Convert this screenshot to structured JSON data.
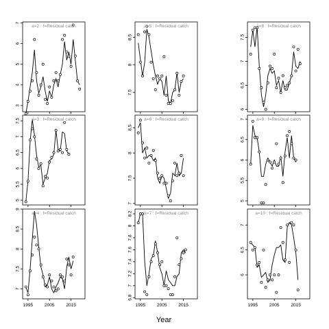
{
  "chart_data": {
    "type": "line",
    "xlabel": "Year",
    "x_ticks": [
      1995,
      2005,
      2015
    ],
    "x": [
      1994,
      1995,
      1996,
      1997,
      1998,
      1999,
      2000,
      2001,
      2002,
      2003,
      2004,
      2005,
      2006,
      2007,
      2008,
      2009,
      2010,
      2011,
      2012,
      2013,
      2014,
      2015,
      2016,
      2017,
      2018,
      2019,
      2020
    ],
    "panels": [
      {
        "label": "a=2  :  f=Residual catch",
        "xlim": [
          1992.5,
          2021.5
        ],
        "ylim": [
          2.7,
          7.05
        ],
        "yticks": [
          3,
          4,
          5,
          6,
          7
        ],
        "fitted": [
          2.6,
          3.2,
          3.9,
          4.6,
          5.7,
          4.2,
          3.6,
          3.9,
          4.4,
          3.7,
          3.2,
          3.7,
          3.4,
          4.0,
          4.3,
          3.9,
          4.5,
          5.0,
          6.1,
          5.2,
          5.6,
          5.0,
          6.2,
          5.2,
          4.2,
          4.0
        ],
        "observed": [
          2.6,
          3.2,
          3.7,
          4.2,
          6.2,
          4.6,
          3.5,
          4.0,
          5.0,
          3.3,
          3.1,
          3.9,
          3.4,
          4.2,
          4.6,
          4.2,
          4.5,
          6.2,
          6.4,
          5.6,
          5.4,
          4.9,
          6.9,
          5.4,
          4.2,
          3.8
        ]
      },
      {
        "label": "a=5  :  f=Residual catch",
        "xlim": [
          1992.5,
          2021.5
        ],
        "ylim": [
          7.15,
          8.78
        ],
        "yticks": [
          7.5,
          8.0,
          8.5
        ],
        "fitted": [
          8.4,
          8.1,
          7.8,
          8.05,
          8.65,
          8.5,
          8.25,
          8.0,
          7.8,
          7.65,
          7.75,
          7.7,
          7.45,
          7.8,
          7.35,
          7.3,
          7.5,
          7.55,
          7.85,
          7.5,
          7.7,
          7.75
        ],
        "observed": [
          8.55,
          8.05,
          7.8,
          8.6,
          8.7,
          8.55,
          8.05,
          7.75,
          7.55,
          7.8,
          7.75,
          7.8,
          8.15,
          7.45,
          7.3,
          7.3,
          7.35,
          7.55,
          7.85,
          7.45,
          7.7,
          7.8
        ]
      },
      {
        "label": "a=8  :  f=Residual catch",
        "xlim": [
          1992.5,
          2021.5
        ],
        "ylim": [
          5.95,
          7.82
        ],
        "yticks": [
          6.0,
          6.5,
          7.0,
          7.5
        ],
        "fitted": [
          7.3,
          7.65,
          7.3,
          7.72,
          6.9,
          6.3,
          6.05,
          6.3,
          6.7,
          6.85,
          6.75,
          6.8,
          6.5,
          6.6,
          6.35,
          6.6,
          6.4,
          6.4,
          6.55,
          6.7,
          7.2,
          6.9,
          6.85,
          7.0
        ],
        "observed": [
          7.15,
          7.65,
          7.7,
          7.7,
          6.85,
          6.45,
          6.15,
          6.0,
          6.55,
          6.9,
          6.85,
          7.15,
          6.45,
          6.65,
          6.35,
          6.7,
          6.45,
          6.5,
          6.55,
          6.7,
          7.3,
          6.8,
          7.25,
          6.95
        ]
      },
      {
        "label": "a=3  :  f=Residual catch",
        "xlim": [
          1992.5,
          2021.5
        ],
        "ylim": [
          4.85,
          7.68
        ],
        "yticks": [
          5.0,
          5.5,
          6.0,
          6.5,
          7.0,
          7.5
        ],
        "fitted": [
          4.95,
          5.6,
          6.85,
          7.55,
          7.05,
          6.4,
          6.05,
          6.1,
          5.5,
          5.7,
          5.85,
          6.25,
          6.3,
          6.45,
          7.2,
          6.6,
          6.55,
          7.15,
          7.1,
          6.55,
          6.45
        ],
        "observed": [
          4.95,
          5.6,
          6.9,
          7.25,
          7.0,
          6.3,
          6.0,
          6.15,
          5.45,
          5.75,
          5.7,
          6.2,
          6.35,
          6.5,
          7.2,
          6.55,
          6.6,
          6.5,
          7.45,
          6.6,
          6.45
        ]
      },
      {
        "label": "a=6  :  f=Residual catch",
        "xlim": [
          1992.5,
          2021.5
        ],
        "ylim": [
          6.97,
          8.75
        ],
        "yticks": [
          7.0,
          7.5,
          8.0,
          8.5
        ],
        "fitted": [
          8.5,
          8.6,
          8.0,
          8.1,
          7.9,
          7.95,
          7.95,
          7.85,
          7.9,
          7.5,
          7.4,
          7.55,
          7.5,
          7.3,
          7.1,
          7.2,
          7.6,
          7.55,
          7.8,
          7.55,
          7.6,
          7.9
        ],
        "observed": [
          8.4,
          8.65,
          8.2,
          7.9,
          8.1,
          7.8,
          7.95,
          8.05,
          7.85,
          7.6,
          7.5,
          7.55,
          7.4,
          7.4,
          7.15,
          7.05,
          7.45,
          7.8,
          7.55,
          7.6,
          7.95,
          7.55
        ]
      },
      {
        "label": "a=9  :  f=Residual catch",
        "xlim": [
          1992.5,
          2021.5
        ],
        "ylim": [
          4.9,
          7.1
        ],
        "yticks": [
          5.0,
          5.5,
          6.0,
          6.5,
          7.0
        ],
        "fitted": [
          5.9,
          6.85,
          6.6,
          6.55,
          6.2,
          5.6,
          5.6,
          5.9,
          6.05,
          5.95,
          5.85,
          6.0,
          5.85,
          5.85,
          6.1,
          5.6,
          6.2,
          6.55,
          6.05,
          6.6,
          6.05,
          5.95
        ],
        "observed": [
          5.9,
          6.95,
          6.55,
          6.55,
          6.2,
          4.95,
          4.95,
          5.4,
          6.0,
          5.95,
          5.8,
          5.95,
          6.4,
          5.9,
          6.05,
          5.45,
          6.1,
          6.6,
          6.7,
          6.4,
          6.05,
          6.0
        ]
      },
      {
        "label": "a=4  :  f=Residual catch",
        "xlim": [
          1992.5,
          2021.5
        ],
        "ylim": [
          6.75,
          9.0
        ],
        "yticks": [
          7.0,
          7.5,
          8.0,
          8.5,
          9.0
        ],
        "fitted": [
          7.05,
          6.9,
          7.5,
          8.25,
          8.95,
          8.6,
          8.05,
          7.55,
          7.35,
          7.05,
          7.1,
          7.3,
          7.0,
          6.9,
          7.05,
          7.15,
          7.3,
          7.25,
          7.0,
          7.55,
          7.8,
          7.5,
          7.7
        ],
        "observed": [
          7.05,
          6.85,
          7.45,
          7.85,
          8.3,
          8.1,
          8.0,
          7.6,
          7.3,
          7.1,
          7.05,
          7.35,
          7.2,
          7.05,
          6.95,
          7.0,
          7.35,
          7.3,
          7.2,
          7.75,
          7.6,
          7.35,
          7.8
        ]
      },
      {
        "label": "a=7  :  f=Residual catch",
        "xlim": [
          1992.5,
          2021.5
        ],
        "ylim": [
          6.78,
          8.28
        ],
        "yticks": [
          6.8,
          7.0,
          7.2,
          7.4,
          7.6,
          7.8,
          8.0,
          8.2
        ],
        "fitted": [
          8.05,
          8.2,
          8.2,
          7.4,
          7.0,
          7.2,
          7.45,
          7.5,
          7.75,
          7.55,
          7.3,
          7.2,
          7.0,
          7.25,
          7.1,
          7.05,
          7.0,
          7.0,
          7.15,
          7.2,
          7.55,
          7.6,
          7.55
        ],
        "observed": [
          8.05,
          8.2,
          8.2,
          6.9,
          6.85,
          7.15,
          7.4,
          7.5,
          7.7,
          7.55,
          7.35,
          7.4,
          7.0,
          7.0,
          6.95,
          6.85,
          6.85,
          7.15,
          7.8,
          7.35,
          7.45,
          7.55,
          7.6
        ]
      },
      {
        "label": "a=10  :  f=Residual catch",
        "xlim": [
          1992.5,
          2021.5
        ],
        "ylim": [
          5.52,
          7.32
        ],
        "yticks": [
          6.0,
          6.5,
          7.0
        ],
        "fitted": [
          6.65,
          6.6,
          6.55,
          6.15,
          6.2,
          5.95,
          6.0,
          6.05,
          5.85,
          5.9,
          6.2,
          6.4,
          6.55,
          6.55,
          6.6,
          6.3,
          6.25,
          6.95,
          7.05,
          7.0,
          6.75,
          6.45,
          5.9
        ],
        "observed": [
          6.65,
          6.5,
          6.55,
          6.2,
          6.25,
          5.85,
          6.5,
          5.75,
          5.9,
          6.0,
          5.9,
          6.0,
          5.65,
          6.0,
          6.95,
          6.65,
          6.3,
          7.0,
          6.25,
          7.05,
          7.0,
          6.5,
          5.7
        ]
      }
    ]
  }
}
